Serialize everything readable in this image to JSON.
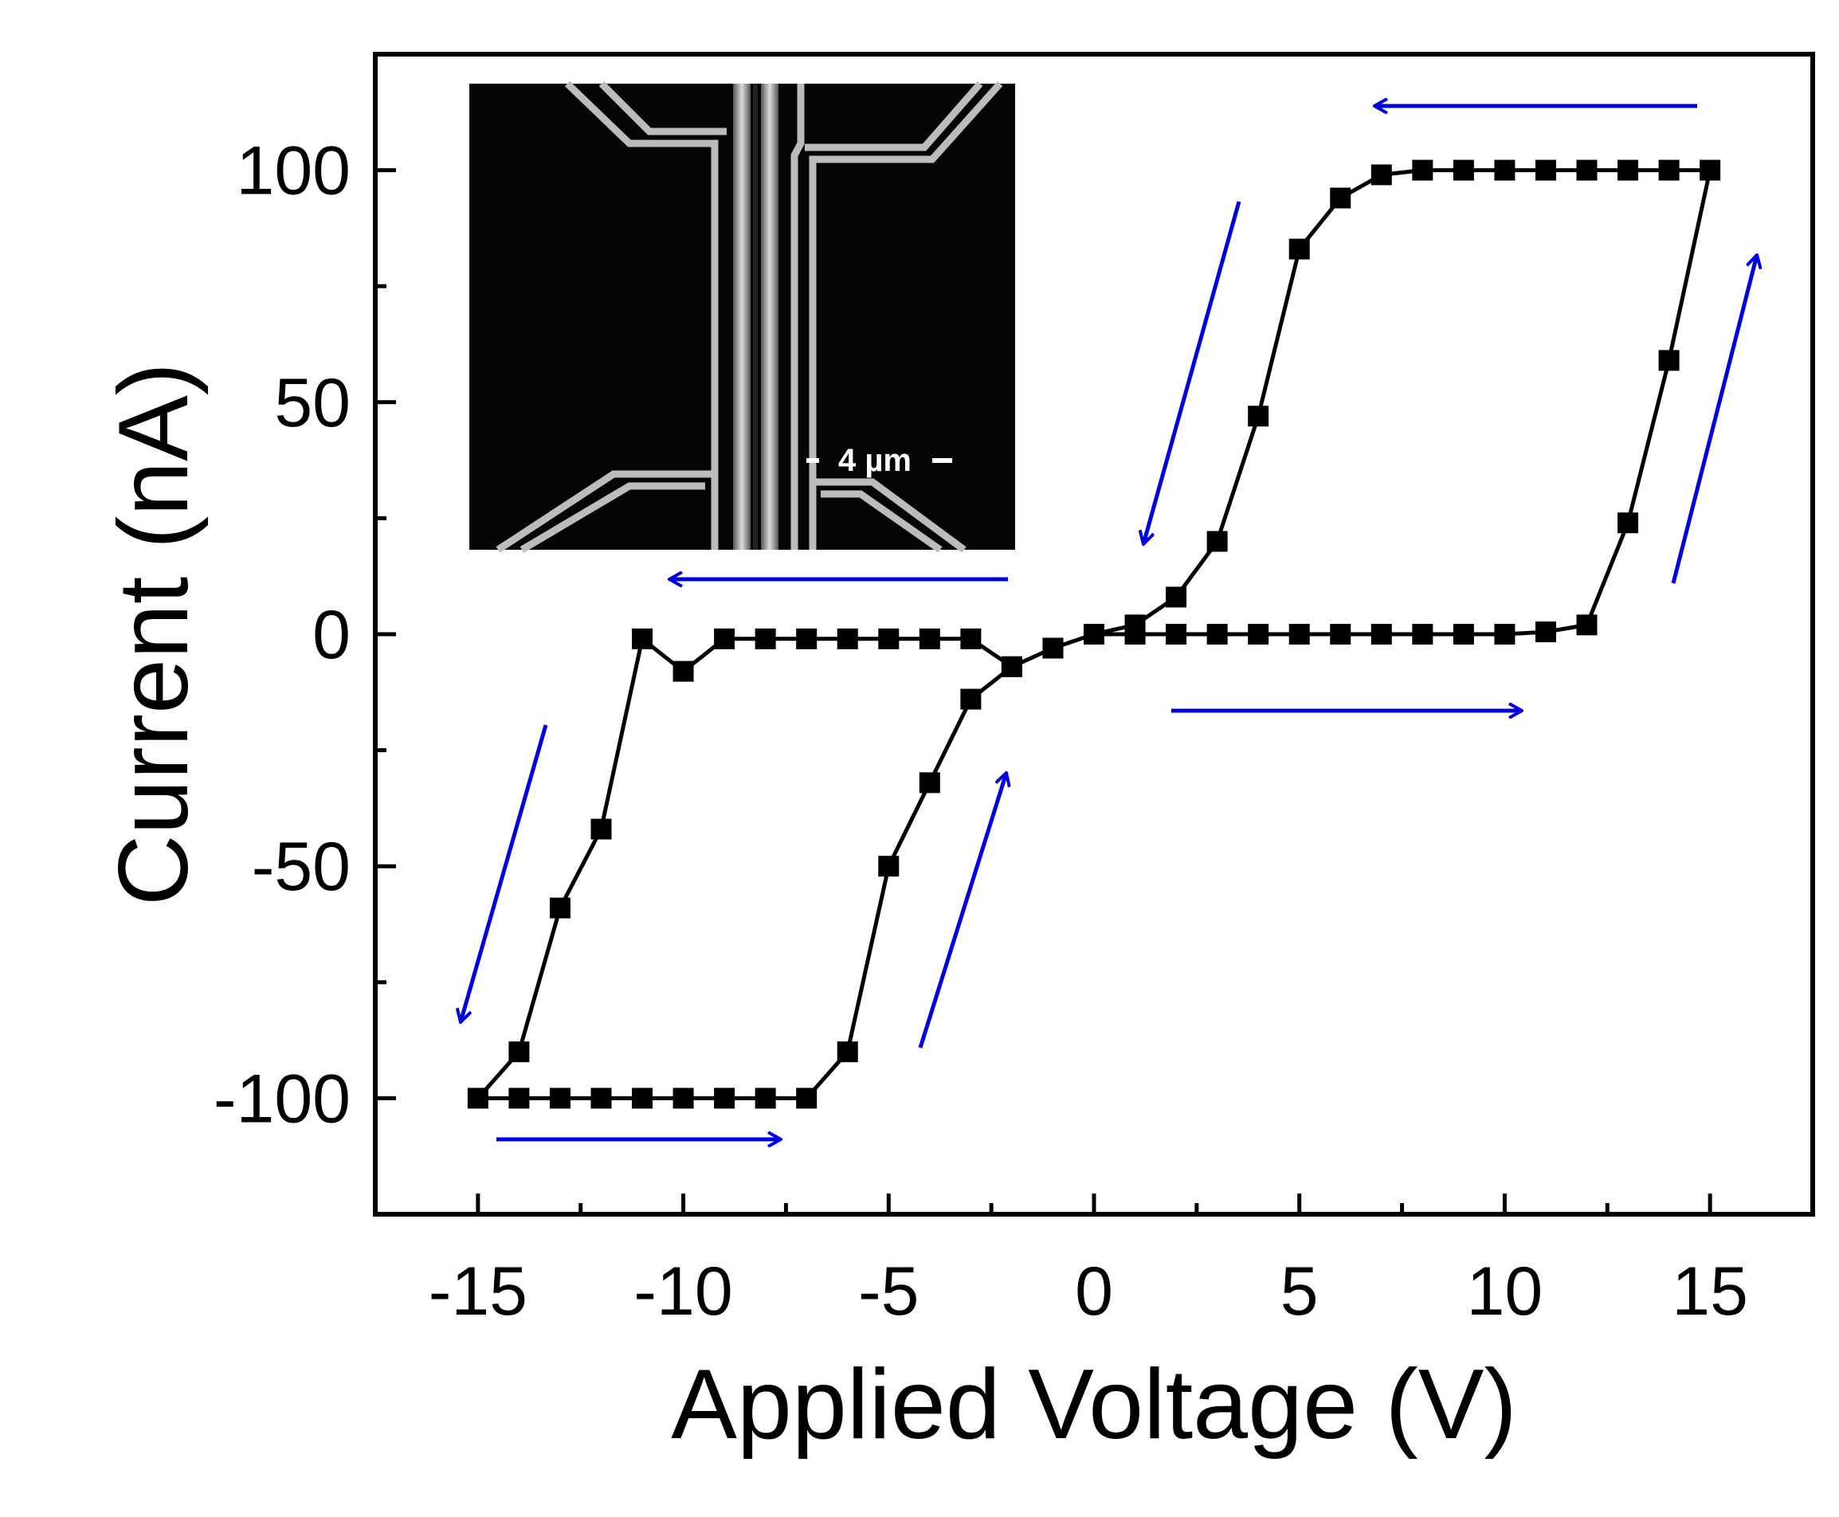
{
  "chart_data": {
    "type": "line",
    "xlabel": "Applied Voltage (V)",
    "ylabel": "Current (nA)",
    "xlim": [
      -17.5,
      17.5
    ],
    "ylim": [
      -125,
      125
    ],
    "xticks": [
      -15,
      -10,
      -5,
      0,
      5,
      10,
      15
    ],
    "yticks": [
      -100,
      -50,
      0,
      50,
      100
    ],
    "x_tick_labels": [
      "-15",
      "-10",
      "-5",
      "0",
      "5",
      "10",
      "15"
    ],
    "y_tick_labels": [
      "-100",
      "-50",
      "0",
      "50",
      "100"
    ],
    "grid": false,
    "legend": "none",
    "marker": "square",
    "line_color": "#000000",
    "arrow_color": "#0000e0",
    "series": [
      {
        "points": [
          [
            0,
            0
          ],
          [
            1,
            0
          ],
          [
            2,
            0
          ],
          [
            3,
            0
          ],
          [
            4,
            0
          ],
          [
            5,
            0
          ],
          [
            6,
            0
          ],
          [
            7,
            0
          ],
          [
            8,
            0
          ],
          [
            9,
            0
          ],
          [
            10,
            0
          ],
          [
            11,
            0.5
          ],
          [
            12,
            2
          ],
          [
            13,
            24
          ],
          [
            14,
            59
          ],
          [
            15,
            100
          ],
          [
            14,
            100
          ],
          [
            13,
            100
          ],
          [
            12,
            100
          ],
          [
            11,
            100
          ],
          [
            10,
            100
          ],
          [
            9,
            100
          ],
          [
            8,
            100
          ],
          [
            7,
            99
          ],
          [
            6,
            94
          ],
          [
            5,
            83
          ],
          [
            4,
            47
          ],
          [
            3,
            20
          ],
          [
            2,
            8
          ],
          [
            1,
            2
          ],
          [
            0,
            0
          ],
          [
            -1,
            -3
          ],
          [
            -2,
            -7
          ],
          [
            -3,
            -1
          ],
          [
            -4,
            -1
          ],
          [
            -5,
            -1
          ],
          [
            -6,
            -1
          ],
          [
            -7,
            -1
          ],
          [
            -8,
            -1
          ],
          [
            -9,
            -1
          ],
          [
            -10,
            -8
          ],
          [
            -11,
            -1
          ],
          [
            -12,
            -42
          ],
          [
            -13,
            -59
          ],
          [
            -14,
            -90
          ],
          [
            -15,
            -100
          ],
          [
            -14,
            -100
          ],
          [
            -13,
            -100
          ],
          [
            -12,
            -100
          ],
          [
            -11,
            -100
          ],
          [
            -10,
            -100
          ],
          [
            -9,
            -100
          ],
          [
            -8,
            -100
          ],
          [
            -7,
            -100
          ],
          [
            -6,
            -90
          ],
          [
            -5,
            -50
          ],
          [
            -4,
            -32
          ],
          [
            -3,
            -14
          ],
          [
            -2,
            -7
          ],
          [
            -1,
            -3
          ],
          [
            0,
            0
          ]
        ]
      }
    ],
    "annotations": {
      "inset_scale_label": "4 µm"
    }
  }
}
